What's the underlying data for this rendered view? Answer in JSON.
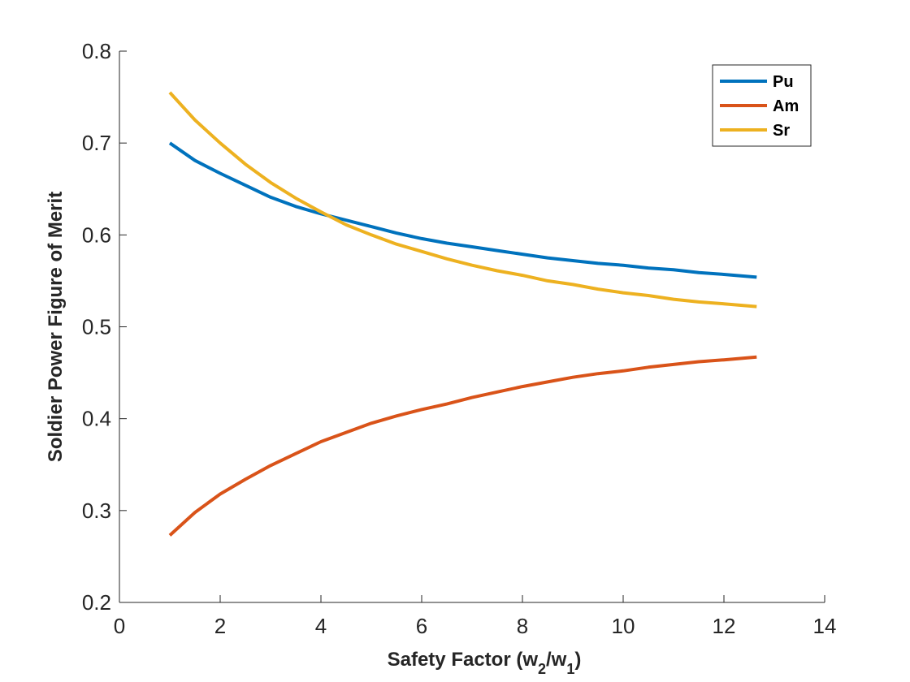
{
  "chart_data": {
    "type": "line",
    "title": "",
    "xlabel": {
      "prefix": "Safety Factor (w",
      "sub1": "2",
      "mid": "/w",
      "sub2": "1",
      "suffix": ")"
    },
    "ylabel": "Soldier Power Figure of Merit",
    "xlim": [
      0,
      14
    ],
    "ylim": [
      0.2,
      0.8
    ],
    "xticks": [
      0,
      2,
      4,
      6,
      8,
      10,
      12,
      14
    ],
    "xtick_labels": [
      "0",
      "2",
      "4",
      "6",
      "8",
      "10",
      "12",
      "14"
    ],
    "yticks": [
      0.2,
      0.3,
      0.4,
      0.5,
      0.6,
      0.7,
      0.8
    ],
    "ytick_labels": [
      "0.2",
      "0.3",
      "0.4",
      "0.5",
      "0.6",
      "0.7",
      "0.8"
    ],
    "grid": false,
    "legend_position": "top-right",
    "x": [
      1,
      1.5,
      2,
      2.5,
      3,
      3.5,
      4,
      4.5,
      5,
      5.5,
      6,
      6.5,
      7,
      7.5,
      8,
      8.5,
      9,
      9.5,
      10,
      10.5,
      11,
      11.5,
      12,
      12.65
    ],
    "series": [
      {
        "name": "Pu",
        "color": "#0072BD",
        "values": [
          0.7,
          0.681,
          0.667,
          0.654,
          0.641,
          0.631,
          0.623,
          0.616,
          0.609,
          0.602,
          0.596,
          0.591,
          0.587,
          0.583,
          0.579,
          0.575,
          0.572,
          0.569,
          0.567,
          0.564,
          0.562,
          0.559,
          0.557,
          0.554
        ]
      },
      {
        "name": "Am",
        "color": "#D95319",
        "values": [
          0.273,
          0.298,
          0.318,
          0.334,
          0.349,
          0.362,
          0.375,
          0.385,
          0.395,
          0.403,
          0.41,
          0.416,
          0.423,
          0.429,
          0.435,
          0.44,
          0.445,
          0.449,
          0.452,
          0.456,
          0.459,
          0.462,
          0.464,
          0.467
        ]
      },
      {
        "name": "Sr",
        "color": "#EDB120",
        "values": [
          0.755,
          0.725,
          0.7,
          0.677,
          0.657,
          0.64,
          0.625,
          0.611,
          0.6,
          0.59,
          0.582,
          0.574,
          0.567,
          0.561,
          0.556,
          0.55,
          0.546,
          0.541,
          0.537,
          0.534,
          0.53,
          0.527,
          0.525,
          0.522
        ]
      }
    ]
  }
}
